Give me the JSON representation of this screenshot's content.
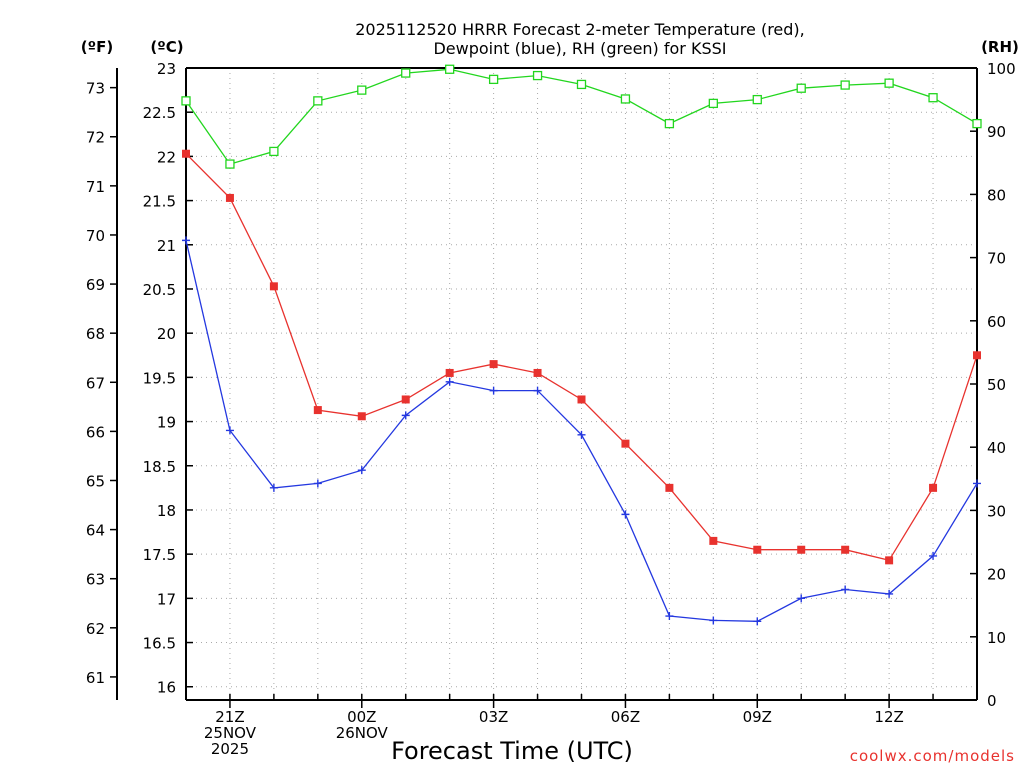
{
  "chart_data": {
    "type": "line",
    "title_line1": "2025112520 HRRR Forecast 2-meter Temperature (red),",
    "title_line2": "Dewpoint (blue), RH (green) for KSSI",
    "xlabel": "Forecast Time (UTC)",
    "credit": "coolwx.com/models",
    "x": [
      20,
      21,
      22,
      23,
      24,
      25,
      26,
      27,
      28,
      29,
      30,
      31,
      32,
      33,
      34,
      35,
      36,
      37,
      38
    ],
    "x_ticks": [
      {
        "hour": 21,
        "lines": [
          "21Z",
          "25NOV",
          "2025"
        ]
      },
      {
        "hour": 24,
        "lines": [
          "00Z",
          "26NOV"
        ]
      },
      {
        "hour": 27,
        "lines": [
          "03Z"
        ]
      },
      {
        "hour": 30,
        "lines": [
          "06Z"
        ]
      },
      {
        "hour": 33,
        "lines": [
          "09Z"
        ]
      },
      {
        "hour": 36,
        "lines": [
          "12Z"
        ]
      }
    ],
    "xlim": [
      20,
      38
    ],
    "celsius_axis": {
      "unit_label": "(ºC)",
      "ylim": [
        15.85,
        23
      ],
      "ticks": [
        "16",
        "16.5",
        "17",
        "17.5",
        "18",
        "18.5",
        "19",
        "19.5",
        "20",
        "20.5",
        "21",
        "21.5",
        "22",
        "22.5",
        "23"
      ]
    },
    "fahrenheit_axis": {
      "unit_label": "(ºF)",
      "ticks": [
        "61",
        "62",
        "63",
        "64",
        "65",
        "66",
        "67",
        "68",
        "69",
        "70",
        "71",
        "72",
        "73"
      ]
    },
    "rh_axis": {
      "unit_label": "(RH)",
      "ylim": [
        0,
        100
      ],
      "ticks": [
        "0",
        "10",
        "20",
        "30",
        "40",
        "50",
        "60",
        "70",
        "80",
        "90",
        "100"
      ]
    },
    "series": [
      {
        "name": "Temperature",
        "axis": "celsius",
        "color": "#e8322e",
        "marker": "filled-square",
        "values": [
          22.03,
          21.53,
          20.53,
          19.13,
          19.06,
          19.25,
          19.55,
          19.65,
          19.55,
          19.25,
          18.75,
          18.25,
          17.65,
          17.55,
          17.55,
          17.55,
          17.43,
          18.25,
          19.75
        ]
      },
      {
        "name": "Dewpoint",
        "axis": "celsius",
        "color": "#2438e0",
        "marker": "plus",
        "values": [
          21.05,
          18.9,
          18.25,
          18.3,
          18.45,
          19.07,
          19.45,
          19.35,
          19.35,
          18.85,
          17.95,
          16.8,
          16.75,
          16.74,
          17,
          17.1,
          17.05,
          17.48,
          18.3
        ]
      },
      {
        "name": "RH",
        "axis": "rh",
        "color": "#22d61e",
        "marker": "open-square",
        "values": [
          94.8,
          84.8,
          86.8,
          94.8,
          96.5,
          99.2,
          99.8,
          98.2,
          98.8,
          97.4,
          95.1,
          91.2,
          94.4,
          95,
          96.8,
          97.3,
          97.6,
          95.3,
          91.2
        ]
      }
    ]
  }
}
